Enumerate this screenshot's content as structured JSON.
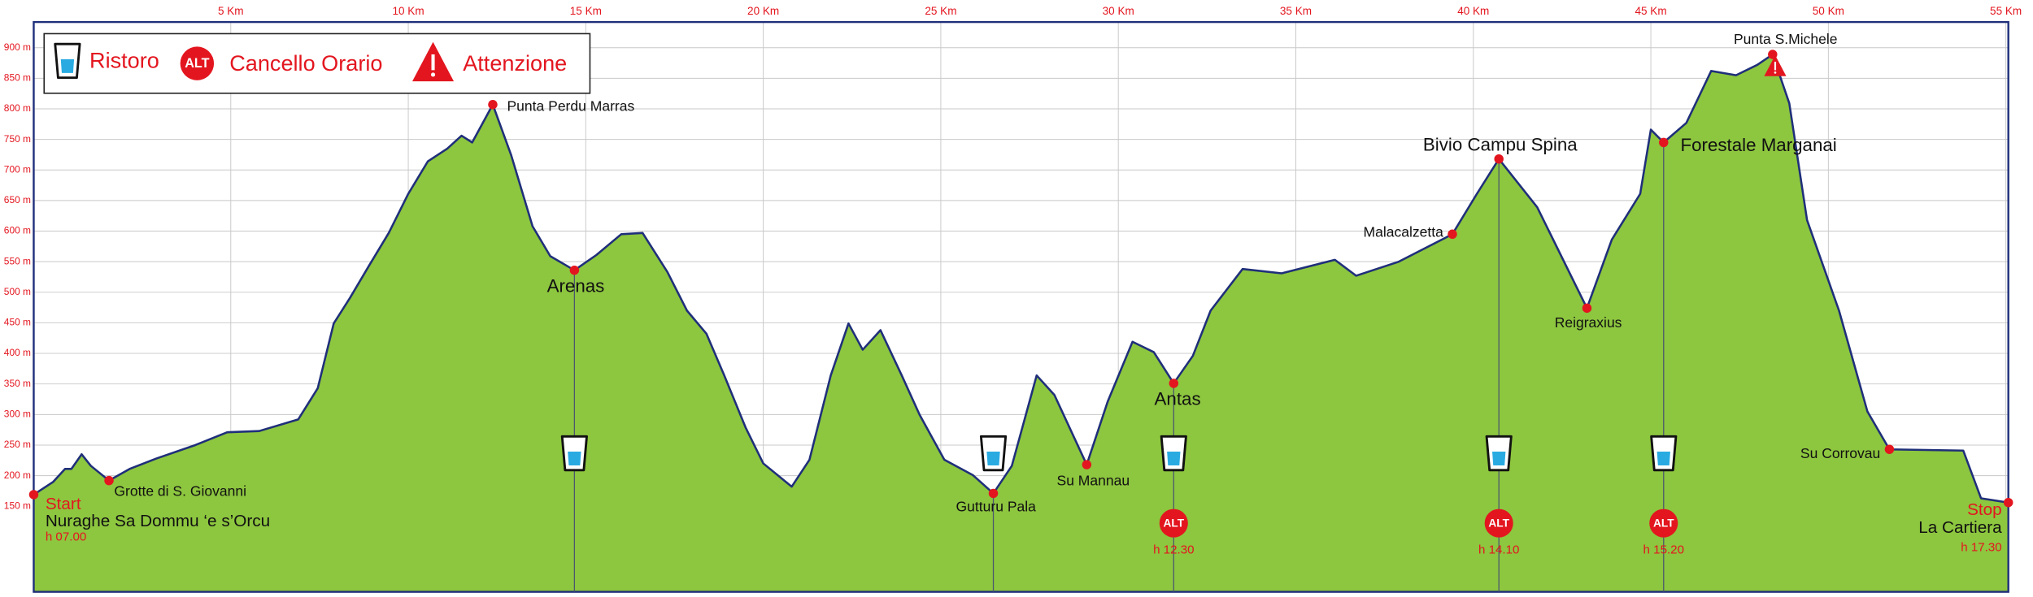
{
  "chart_data": {
    "type": "area",
    "color": "#8dc63f",
    "line_color": "#1f2f7a",
    "grid": true,
    "xlim": [
      -0.55,
      55.07
    ],
    "ylim": [
      10,
      942
    ],
    "xticks": [
      {
        "value": 5,
        "label": "5 Km"
      },
      {
        "value": 10,
        "label": "10 Km"
      },
      {
        "value": 15,
        "label": "15 Km"
      },
      {
        "value": 20,
        "label": "20 Km"
      },
      {
        "value": 25,
        "label": "25 Km"
      },
      {
        "value": 30,
        "label": "30 Km"
      },
      {
        "value": 35,
        "label": "35 Km"
      },
      {
        "value": 40,
        "label": "40 Km"
      },
      {
        "value": 45,
        "label": "45 Km"
      },
      {
        "value": 50,
        "label": "50 Km"
      },
      {
        "value": 55,
        "label": "55 Km"
      }
    ],
    "yticks": [
      {
        "value": 150,
        "label": "150 m"
      },
      {
        "value": 200,
        "label": "200 m"
      },
      {
        "value": 250,
        "label": "250 m"
      },
      {
        "value": 300,
        "label": "300 m"
      },
      {
        "value": 350,
        "label": "350 m"
      },
      {
        "value": 400,
        "label": "400 m"
      },
      {
        "value": 450,
        "label": "450 m"
      },
      {
        "value": 500,
        "label": "500 m"
      },
      {
        "value": 550,
        "label": "550 m"
      },
      {
        "value": 600,
        "label": "600 m"
      },
      {
        "value": 650,
        "label": "650 m"
      },
      {
        "value": 700,
        "label": "700 m"
      },
      {
        "value": 750,
        "label": "750 m"
      },
      {
        "value": 800,
        "label": "800 m"
      },
      {
        "value": 850,
        "label": "850 m"
      },
      {
        "value": 900,
        "label": "900 m"
      }
    ],
    "x": [
      -0.55,
      0,
      0.33,
      0.51,
      0.8,
      1.06,
      1.57,
      2.15,
      2.9,
      4.0,
      4.9,
      5.8,
      6.9,
      7.45,
      7.9,
      8.36,
      8.9,
      9.45,
      10.0,
      10.55,
      11.1,
      11.5,
      11.8,
      12.38,
      12.9,
      13.5,
      14.0,
      14.68,
      15.3,
      16.0,
      16.6,
      17.3,
      17.85,
      18.4,
      18.9,
      19.5,
      20.0,
      20.8,
      21.3,
      21.9,
      22.4,
      22.8,
      23.3,
      23.9,
      24.4,
      25.1,
      25.9,
      26.48,
      27.0,
      27.7,
      28.2,
      29.11,
      29.7,
      30.4,
      31.0,
      31.56,
      32.1,
      32.6,
      33.5,
      34.6,
      36.1,
      36.7,
      37.9,
      39.41,
      40.1,
      40.72,
      41.8,
      43.2,
      43.9,
      44.7,
      45.0,
      45.36,
      46.0,
      46.7,
      47.4,
      48.0,
      48.43,
      48.9,
      49.4,
      50.3,
      51.1,
      51.72,
      53.8,
      54.3,
      55.07
    ],
    "values": [
      169,
      190,
      211,
      211,
      235,
      216,
      192,
      211,
      228,
      250,
      271,
      273,
      292,
      343,
      449,
      491,
      544,
      597,
      661,
      714,
      735,
      756,
      745,
      807,
      724,
      608,
      559,
      536,
      561,
      595,
      597,
      533,
      470,
      432,
      364,
      279,
      220,
      182,
      226,
      364,
      449,
      406,
      438,
      364,
      300,
      226,
      201,
      171,
      216,
      364,
      332,
      218,
      321,
      419,
      402,
      351,
      396,
      470,
      538,
      531,
      553,
      527,
      550,
      595,
      661,
      718,
      639,
      474,
      586,
      661,
      766,
      745,
      777,
      862,
      855,
      872,
      889,
      809,
      618,
      470,
      305,
      243,
      241,
      163,
      156
    ],
    "legend": {
      "ristoro": "Ristoro",
      "gate": "Cancello Orario",
      "warning": "Attenzione",
      "gate_badge": "ALT"
    },
    "waypoints": [
      {
        "name": "Start",
        "sublabel": "Nuraghe Sa Dommu ‘e s’Orcu",
        "time": "h 07.00",
        "x": -0.55,
        "y": 169
      },
      {
        "name": "Grotte di S. Giovanni",
        "x": 1.57,
        "y": 192
      },
      {
        "name": "Punta Perdu Marras",
        "x": 12.38,
        "y": 807
      },
      {
        "name": "Arenas",
        "x": 14.68,
        "y": 536,
        "ristoro": true
      },
      {
        "name": "Gutturu Pala",
        "x": 26.48,
        "y": 171,
        "ristoro": true
      },
      {
        "name": "Su Mannau",
        "x": 29.11,
        "y": 218
      },
      {
        "name": "Antas",
        "x": 31.56,
        "y": 351,
        "ristoro": true,
        "gate": true,
        "time": "h 12.30"
      },
      {
        "name": "Malacalzetta",
        "x": 39.41,
        "y": 595
      },
      {
        "name": "Bivio Campu Spina",
        "x": 40.72,
        "y": 718,
        "ristoro": true,
        "gate": true,
        "time": "h 14.10"
      },
      {
        "name": "Reigraxius",
        "x": 43.2,
        "y": 474
      },
      {
        "name": "Forestale Marganai",
        "x": 45.36,
        "y": 745,
        "ristoro": true,
        "gate": true,
        "time": "h 15.20"
      },
      {
        "name": "Punta S.Michele",
        "x": 48.43,
        "y": 889,
        "warning": true
      },
      {
        "name": "Su Corrovau",
        "x": 51.72,
        "y": 243
      },
      {
        "name": "Stop",
        "sublabel": "La Cartiera",
        "time": "h 17.30",
        "x": 55.07,
        "y": 156
      }
    ]
  }
}
